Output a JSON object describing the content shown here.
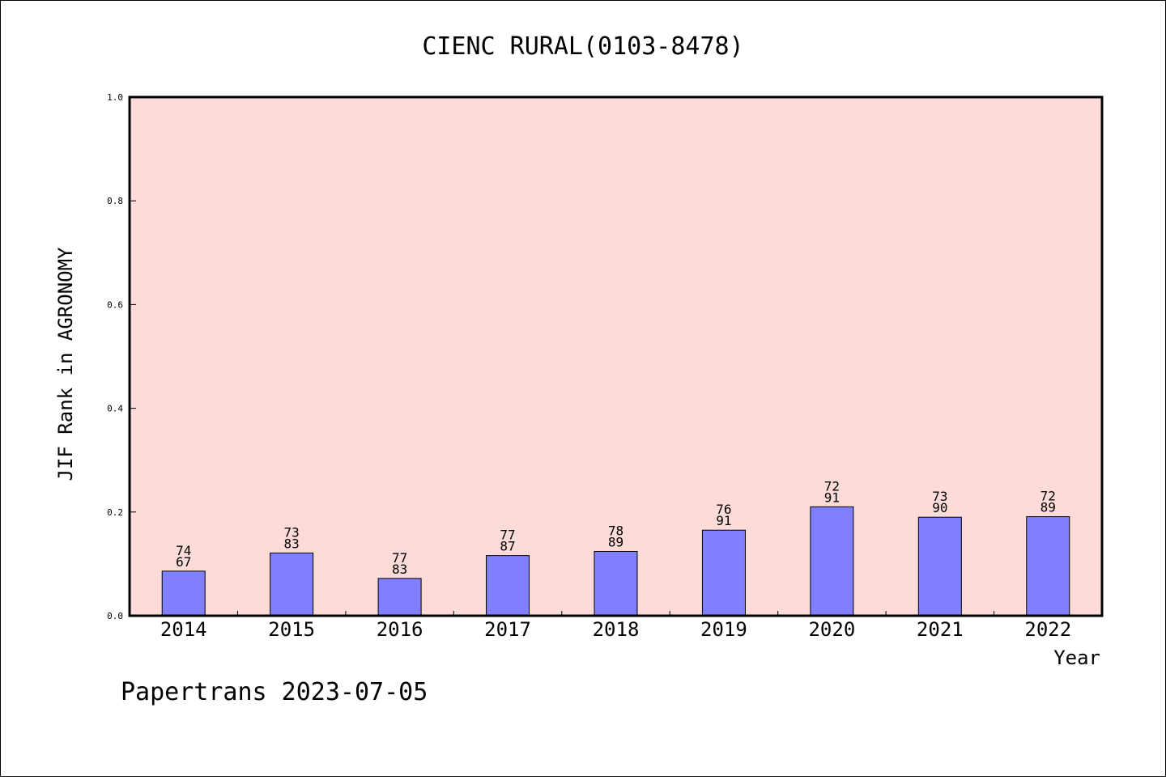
{
  "chart_data": {
    "type": "bar",
    "title": "CIENC RURAL(0103-8478)",
    "xlabel": "Year",
    "ylabel": "JIF Rank in AGRONOMY",
    "ylim": [
      0,
      1.0
    ],
    "yticks": [
      "0.0",
      "0.2",
      "0.4",
      "0.6",
      "0.8",
      "1.0"
    ],
    "categories": [
      "2014",
      "2015",
      "2016",
      "2017",
      "2018",
      "2019",
      "2020",
      "2021",
      "2022"
    ],
    "values": [
      0.086,
      0.121,
      0.072,
      0.116,
      0.124,
      0.165,
      0.21,
      0.19,
      0.191
    ],
    "labels_top": [
      "74",
      "73",
      "77",
      "77",
      "78",
      "76",
      "72",
      "73",
      "72"
    ],
    "labels_bottom": [
      "67",
      "83",
      "83",
      "87",
      "89",
      "91",
      "91",
      "90",
      "89"
    ],
    "colors": {
      "plot_background": "#fddbd8",
      "bar_fill": "#8080ff",
      "bar_stroke": "#000000"
    },
    "grid": false,
    "legend": "none"
  },
  "footer": {
    "text": "Papertrans 2023-07-05"
  }
}
